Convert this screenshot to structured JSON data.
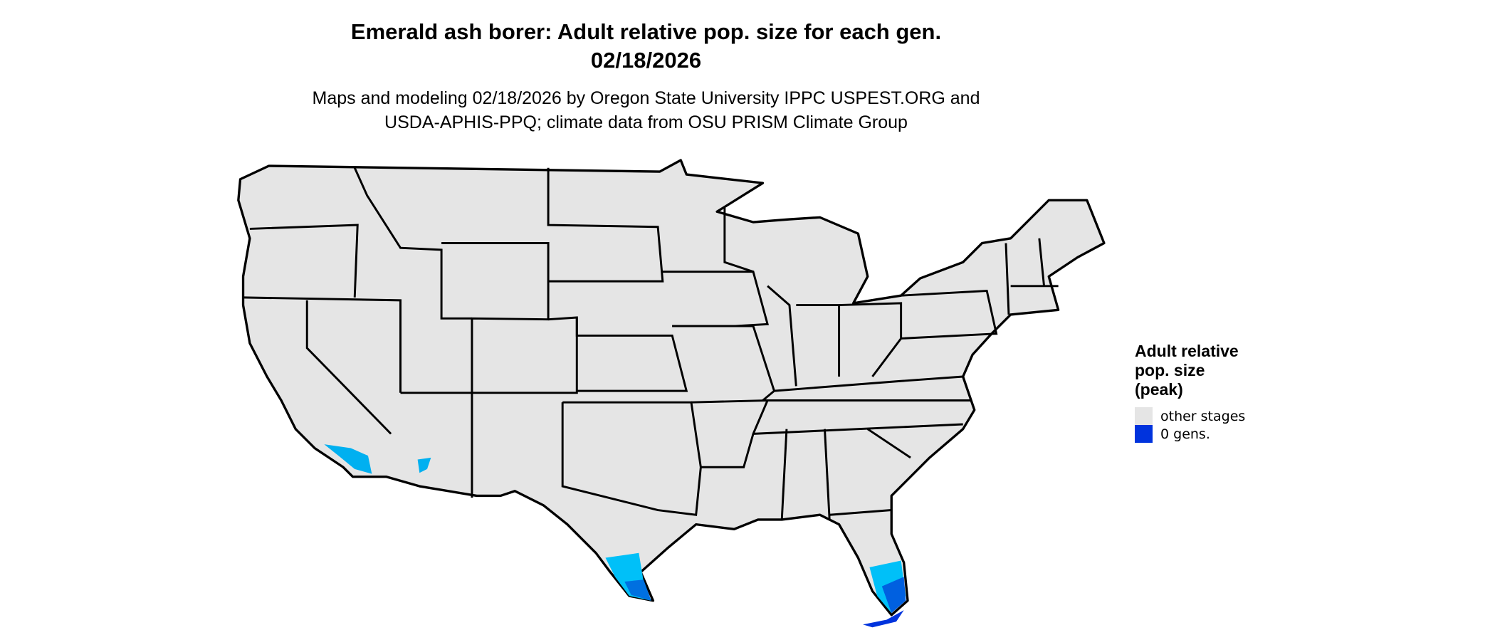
{
  "title": {
    "line1": "Emerald ash borer: Adult relative pop. size for each gen.",
    "line2": "02/18/2026"
  },
  "subtitle": {
    "line1": "Maps and modeling 02/18/2026 by Oregon State University IPPC USPEST.ORG and",
    "line2": "USDA-APHIS-PPQ; climate data from OSU PRISM Climate Group"
  },
  "legend": {
    "title_lines": [
      "Adult relative",
      "pop. size",
      "(peak)"
    ],
    "items": [
      {
        "label": "other stages",
        "color": "#e5e5e5"
      },
      {
        "label": "0 gens.",
        "color": "#0033dd"
      }
    ]
  },
  "colors": {
    "land": "#e5e5e5",
    "border": "#000000",
    "gradient": [
      "#00c0f8",
      "#009ae8",
      "#0070e0",
      "#0040dd"
    ]
  }
}
